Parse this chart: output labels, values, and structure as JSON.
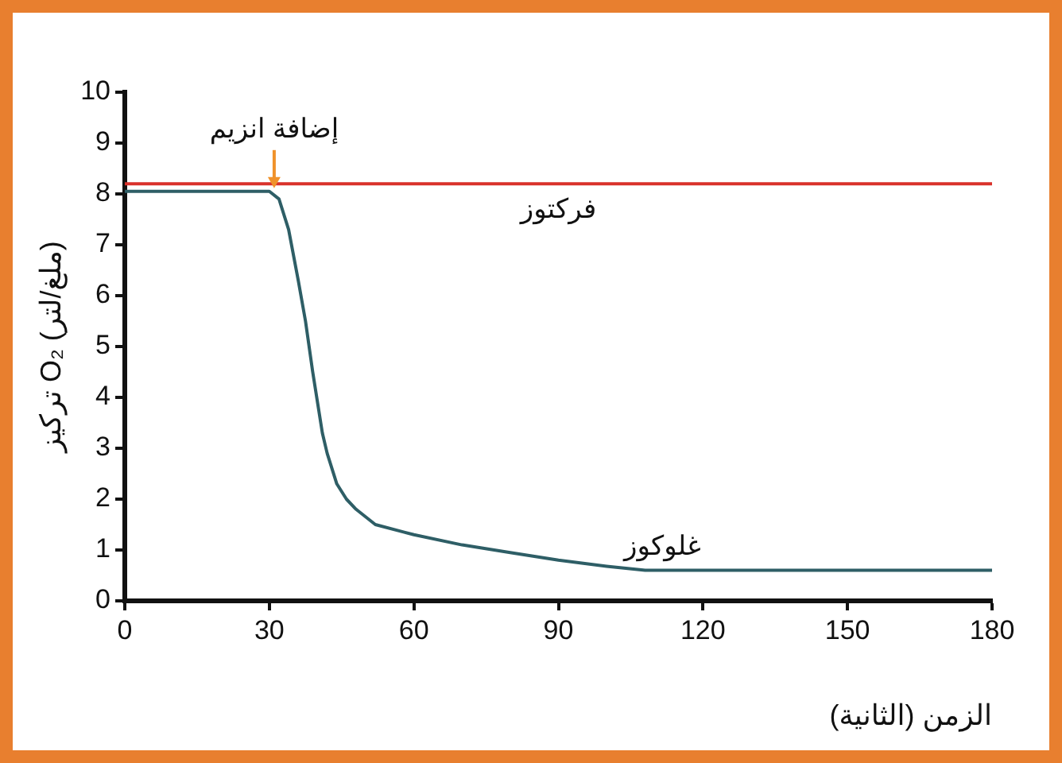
{
  "chart_data": {
    "type": "line",
    "xlabel": "الزمن (الثانية)",
    "ylabel": "تركيز O₂ (ملغ/لتر)",
    "xlim": [
      0,
      180
    ],
    "xticks": [
      0,
      30,
      60,
      90,
      120,
      150,
      180
    ],
    "ylim": [
      0,
      10
    ],
    "yticks": [
      0,
      1,
      2,
      3,
      4,
      5,
      6,
      7,
      8,
      9,
      10
    ],
    "grid": false,
    "legend": false,
    "marker": "none",
    "line_style": "solid",
    "series": [
      {
        "name": "فركتوز",
        "color": "#d9312b",
        "x": [
          0,
          180
        ],
        "values": [
          8.2,
          8.2
        ]
      },
      {
        "name": "غلوكوز",
        "color": "#2e5e66",
        "x": [
          0,
          30,
          32,
          34,
          36,
          37.5,
          39,
          41,
          42,
          44,
          46,
          48,
          52,
          60,
          70,
          80,
          90,
          100,
          108,
          120,
          150,
          180
        ],
        "values": [
          8.05,
          8.05,
          7.9,
          7.3,
          6.3,
          5.5,
          4.5,
          3.3,
          2.9,
          2.3,
          2.0,
          1.8,
          1.5,
          1.3,
          1.1,
          0.95,
          0.8,
          0.68,
          0.6,
          0.6,
          0.6,
          0.6
        ]
      }
    ],
    "annotations": [
      {
        "text": "إضافة انزيم",
        "x": 31,
        "y": 8.05
      }
    ]
  }
}
